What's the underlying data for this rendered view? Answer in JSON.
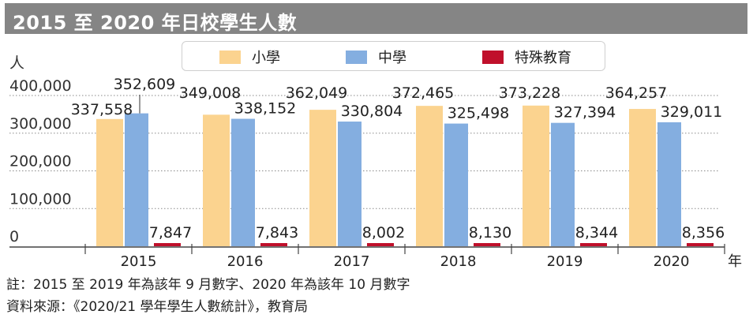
{
  "title": "2015 至 2020 年日校學生人數",
  "notes": {
    "line1": "註：2015 至 2019 年為該年 9 月數字、2020 年為該年 10 月數字",
    "line2": "資料來源：《2020/21 學年學生人數統計》，教育局"
  },
  "colors": {
    "primary": "#fbd38f",
    "secondary": "#84aee0",
    "special": "#c0102b",
    "title_bg": "#858585"
  },
  "chart_data": {
    "type": "bar",
    "ylabel": "人",
    "xlabel": "年",
    "categories": [
      "2015",
      "2016",
      "2017",
      "2018",
      "2019",
      "2020"
    ],
    "series": [
      {
        "name": "小學",
        "values": [
          337558,
          349008,
          362049,
          372465,
          373228,
          364257
        ],
        "labels": [
          "337,558",
          "349,008",
          "362,049",
          "372,465",
          "373,228",
          "364,257"
        ]
      },
      {
        "name": "中學",
        "values": [
          352609,
          338152,
          330804,
          325498,
          327394,
          329011
        ],
        "labels": [
          "352,609",
          "338,152",
          "330,804",
          "325,498",
          "327,394",
          "329,011"
        ]
      },
      {
        "name": "特殊教育",
        "values": [
          7847,
          7843,
          8002,
          8130,
          8344,
          8356
        ],
        "labels": [
          "7,847",
          "7,843",
          "8,002",
          "8,130",
          "8,344",
          "8,356"
        ]
      }
    ],
    "yticks": [
      0,
      100000,
      200000,
      300000,
      400000
    ],
    "ytick_labels": [
      "0",
      "100,000",
      "200,000",
      "300,000",
      "400,000"
    ],
    "ylim": [
      0,
      400000
    ],
    "grid": "dotted horizontal",
    "legend_position": "top"
  }
}
